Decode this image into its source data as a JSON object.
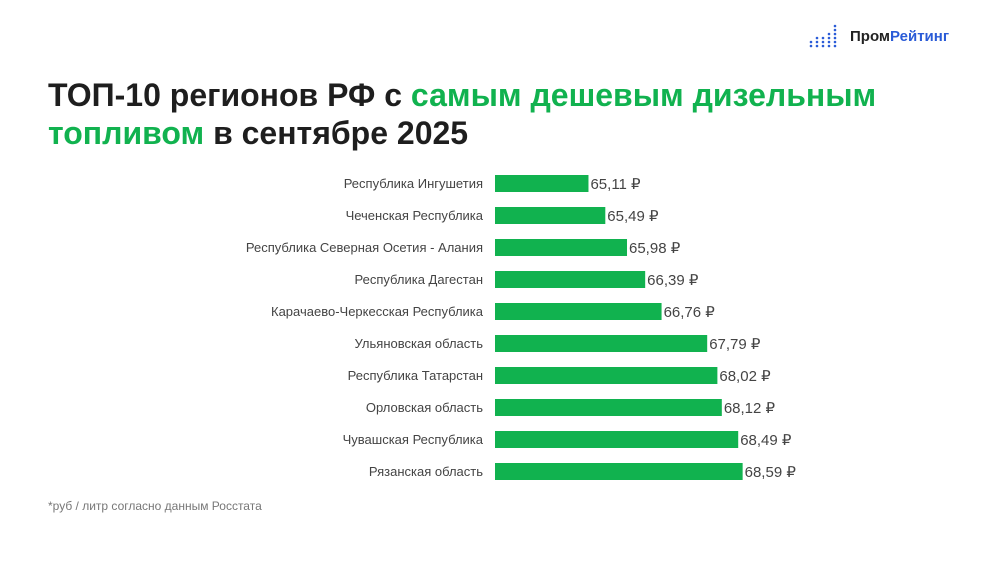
{
  "logo": {
    "part1": "Пром",
    "part2": "Рейтинг",
    "icon": "dotted-bars-logo-icon"
  },
  "title": {
    "part1": "ТОП-10 регионов РФ с ",
    "highlight1": "самым дешевым дизельным",
    "highlight2": "топливом",
    "part2": " в сентябре 2025"
  },
  "footnote": "*руб / литр согласно данным Росстата",
  "colors": {
    "bar": "#11b24f",
    "accent": "#11b24f",
    "logo_blue": "#2a5bd7"
  },
  "chart_data": {
    "type": "bar",
    "orientation": "horizontal",
    "categories": [
      "Республика Ингушетия",
      "Чеченская Республика",
      "Республика Северная Осетия - Алания",
      "Республика Дагестан",
      "Карачаево-Черкесская Республика",
      "Ульяновская область",
      "Республика Татарстан",
      "Орловская область",
      "Чувашская Республика",
      "Рязанская область"
    ],
    "values": [
      65.11,
      65.49,
      65.98,
      66.39,
      66.76,
      67.79,
      68.02,
      68.12,
      68.49,
      68.59
    ],
    "labels": [
      "65,11 ₽",
      "65,49 ₽",
      "65,98 ₽",
      "66,39 ₽",
      "66,76 ₽",
      "67,79 ₽",
      "68,02 ₽",
      "68,12 ₽",
      "68,49 ₽",
      "68,59 ₽"
    ],
    "xlim": [
      63,
      70
    ],
    "grid": false
  }
}
